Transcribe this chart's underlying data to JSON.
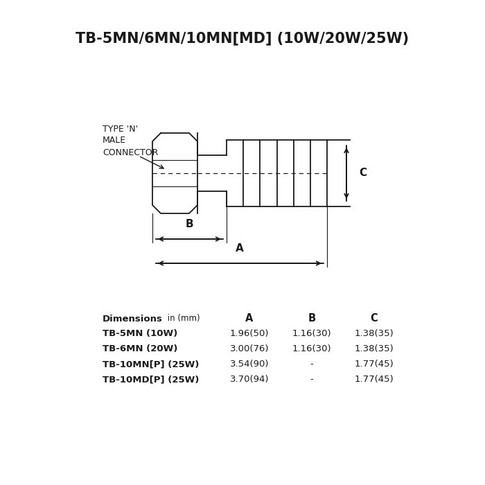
{
  "title": "TB-5MN/6MN/10MN[MD] (10W/20W/25W)",
  "background_color": "#ffffff",
  "label_connector": "TYPE 'N'\nMALE\nCONNECTOR",
  "dim_label_A": "A",
  "dim_label_B": "B",
  "dim_label_C": "C",
  "table_rows": [
    [
      "TB-5MN (10W)",
      "1.96(50)",
      "1.16(30)",
      "1.38(35)"
    ],
    [
      "TB-6MN (20W)",
      "3.00(76)",
      "1.16(30)",
      "1.38(35)"
    ],
    [
      "TB-10MN[P] (25W)",
      "3.54(90)",
      "-",
      "1.77(45)"
    ],
    [
      "TB-10MD[P] (25W)",
      "3.70(94)",
      "-",
      "1.77(45)"
    ]
  ],
  "line_color": "#1a1a1a",
  "text_color": "#1a1a1a",
  "title_fontsize": 15,
  "table_fontsize": 9.5,
  "dim_fontsize": 11
}
